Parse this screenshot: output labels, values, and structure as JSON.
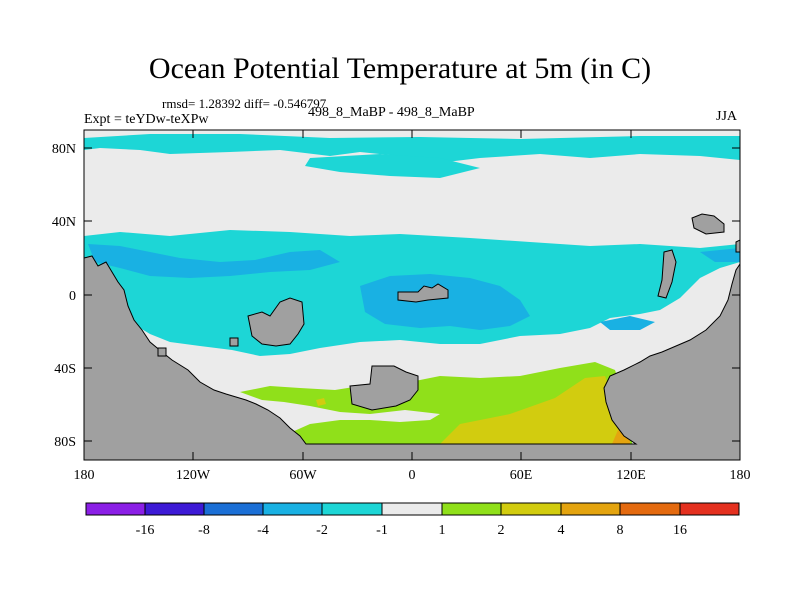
{
  "title": "Ocean Potential Temperature at 5m (in C)",
  "stats": "rmsd= 1.28392 diff= -0.546797",
  "experiment": "Expt = teYDw-teXPw",
  "runs": "498_8_MaBP - 498_8_MaBP",
  "season": "JJA",
  "axes": {
    "lat_labels": [
      "80N",
      "40N",
      "0",
      "40S",
      "80S"
    ],
    "lon_labels": [
      "180",
      "120W",
      "60W",
      "0",
      "60E",
      "120E",
      "180"
    ]
  },
  "legend": {
    "labels": [
      "-16",
      "-8",
      "-4",
      "-2",
      "-1",
      "1",
      "2",
      "4",
      "8",
      "16"
    ],
    "colors": [
      "#8b1fe6",
      "#3d1ad6",
      "#1b6fd6",
      "#19b1e3",
      "#1dd6d6",
      "#ebebeb",
      "#90e01a",
      "#d2cc0f",
      "#e4a40f",
      "#e46a0f",
      "#e4301f"
    ]
  },
  "colors": {
    "land": "#a0a0a0",
    "neutral": "#ebebeb",
    "cool1": "#1dd6d6",
    "cool2": "#19b1e3",
    "warm1": "#90e01a",
    "warm2": "#d2cc0f",
    "warm3": "#e4a40f"
  }
}
